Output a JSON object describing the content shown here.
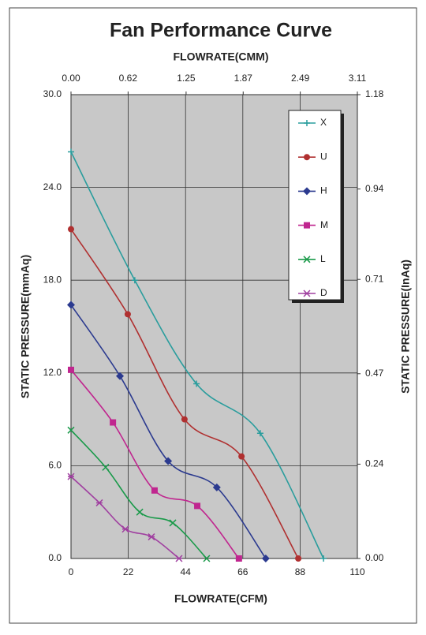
{
  "chart_data": {
    "type": "line",
    "title": "Fan Performance Curve",
    "x_label": "FLOWRATE(CFM)",
    "x2_label": "FLOWRATE(CMM)",
    "y_label": "STATIC PRESSURE(mmAq)",
    "y2_label": "STATIC PRESSURE(InAq)",
    "xlim": [
      0,
      110
    ],
    "xticks": [
      0,
      22,
      44,
      66,
      88,
      110
    ],
    "x2lim": [
      0,
      3.11
    ],
    "x2ticks": [
      {
        "value": 0,
        "label": "0.00"
      },
      0.62,
      1.25,
      1.87,
      2.49,
      3.11
    ],
    "ylim": [
      0,
      30
    ],
    "yticks": [
      {
        "value": 0,
        "label": "0.0"
      },
      {
        "value": 6,
        "label": "6.0"
      },
      {
        "value": 12,
        "label": "12.0"
      },
      {
        "value": 18,
        "label": "18.0"
      },
      {
        "value": 24,
        "label": "24.0"
      },
      {
        "value": 30,
        "label": "30.0"
      }
    ],
    "y2lim": [
      0,
      1.18
    ],
    "y2ticks": [
      {
        "value": 0,
        "label": "0.00"
      },
      0.24,
      0.47,
      0.71,
      0.94,
      1.18
    ],
    "grid": true,
    "legend": "top-right",
    "series": [
      {
        "name": "X",
        "color": "#2a9d9d",
        "marker": "plus",
        "x": [
          0,
          24.5,
          48.2,
          72.7,
          97
        ],
        "values": [
          26.3,
          18.0,
          11.3,
          8.1,
          0
        ]
      },
      {
        "name": "U",
        "color": "#b03030",
        "marker": "circle",
        "x": [
          0,
          21.8,
          43.6,
          65.5,
          87.3
        ],
        "values": [
          21.3,
          15.8,
          9.0,
          6.6,
          0
        ]
      },
      {
        "name": "H",
        "color": "#2b3a8f",
        "marker": "diamond",
        "x": [
          0,
          18.8,
          37.3,
          56,
          74.8
        ],
        "values": [
          16.4,
          11.8,
          6.3,
          4.6,
          0
        ]
      },
      {
        "name": "M",
        "color": "#c0268f",
        "marker": "square",
        "x": [
          0,
          16.1,
          32.1,
          48.5,
          64.5
        ],
        "values": [
          12.2,
          8.8,
          4.4,
          3.4,
          0
        ]
      },
      {
        "name": "L",
        "color": "#1a9a4a",
        "marker": "cross",
        "x": [
          0,
          13.3,
          26.4,
          39.1,
          52.1
        ],
        "values": [
          8.3,
          5.9,
          3.0,
          2.3,
          0
        ]
      },
      {
        "name": "D",
        "color": "#a040a0",
        "marker": "star",
        "x": [
          0,
          10.9,
          20.9,
          30.9,
          41.5
        ],
        "values": [
          5.3,
          3.6,
          1.9,
          1.4,
          0
        ]
      }
    ]
  }
}
